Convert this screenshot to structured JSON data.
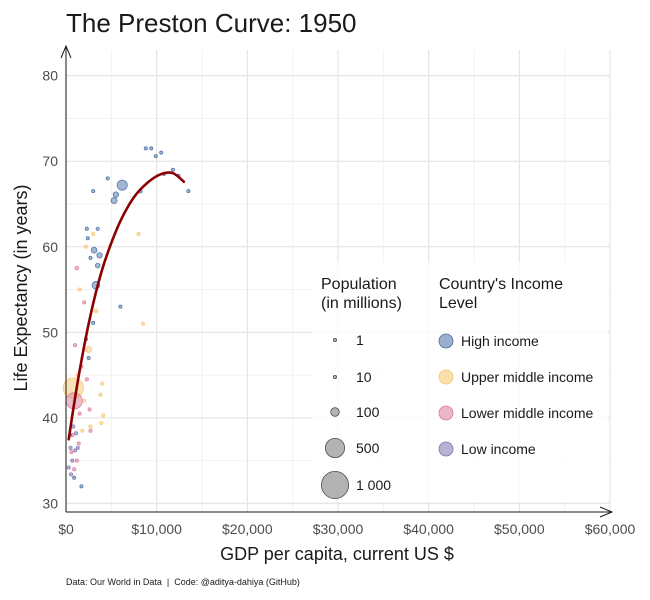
{
  "chart_data": {
    "type": "scatter",
    "title": "The Preston Curve: 1950",
    "xlabel": "GDP per capita, current US $",
    "ylabel": "Life Expectancy (in years)",
    "caption": "Data: Our World in Data  |  Code: @aditya-dahiya (GitHub)",
    "xlim": [
      0,
      60000
    ],
    "ylim": [
      29,
      83
    ],
    "x_ticks": [
      {
        "value": 0,
        "label": "$0"
      },
      {
        "value": 10000,
        "label": "$10,000"
      },
      {
        "value": 20000,
        "label": "$20,000"
      },
      {
        "value": 30000,
        "label": "$30,000"
      },
      {
        "value": 40000,
        "label": "$40,000"
      },
      {
        "value": 50000,
        "label": "$50,000"
      },
      {
        "value": 60000,
        "label": "$60,000"
      }
    ],
    "y_ticks": [
      {
        "value": 30,
        "label": "30"
      },
      {
        "value": 40,
        "label": "40"
      },
      {
        "value": 50,
        "label": "50"
      },
      {
        "value": 60,
        "label": "60"
      },
      {
        "value": 70,
        "label": "70"
      },
      {
        "value": 80,
        "label": "80"
      }
    ],
    "grid": true,
    "size_legend": {
      "title": [
        "Population",
        "(in millions)"
      ],
      "entries": [
        {
          "label": "1",
          "value": 1
        },
        {
          "label": "10",
          "value": 10
        },
        {
          "label": "100",
          "value": 100
        },
        {
          "label": "500",
          "value": 500
        },
        {
          "label": "1 000",
          "value": 1000
        }
      ]
    },
    "color_legend": {
      "title": [
        "Country's Income",
        "Level"
      ],
      "entries": [
        {
          "label": "High income",
          "color": "#4a6fa5"
        },
        {
          "label": "Upper middle income",
          "color": "#f7c66b"
        },
        {
          "label": "Lower middle income",
          "color": "#d97a9a"
        },
        {
          "label": "Low income",
          "color": "#7f73b3"
        }
      ]
    },
    "legend_placement": "bottom-right inside plot",
    "trend": {
      "color": "#8b0000",
      "points": [
        {
          "x": 300,
          "y": 37.5
        },
        {
          "x": 800,
          "y": 41
        },
        {
          "x": 1500,
          "y": 45.5
        },
        {
          "x": 2500,
          "y": 51
        },
        {
          "x": 3500,
          "y": 55.5
        },
        {
          "x": 4500,
          "y": 59
        },
        {
          "x": 6000,
          "y": 63
        },
        {
          "x": 7500,
          "y": 65.8
        },
        {
          "x": 9000,
          "y": 67.5
        },
        {
          "x": 10500,
          "y": 68.5
        },
        {
          "x": 11800,
          "y": 68.6
        },
        {
          "x": 13000,
          "y": 67.6
        }
      ]
    },
    "series": [
      {
        "name": "High income",
        "points": [
          {
            "x": 8800,
            "y": 71.5,
            "pop": 5
          },
          {
            "x": 9400,
            "y": 71.5,
            "pop": 7
          },
          {
            "x": 10500,
            "y": 71,
            "pop": 4
          },
          {
            "x": 9900,
            "y": 70.6,
            "pop": 3
          },
          {
            "x": 11800,
            "y": 69,
            "pop": 10
          },
          {
            "x": 12400,
            "y": 68.3,
            "pop": 12
          },
          {
            "x": 10800,
            "y": 68.5,
            "pop": 8
          },
          {
            "x": 13500,
            "y": 66.5,
            "pop": 2
          },
          {
            "x": 8200,
            "y": 66.5,
            "pop": 20
          },
          {
            "x": 6200,
            "y": 67.2,
            "pop": 140
          },
          {
            "x": 5500,
            "y": 66.1,
            "pop": 40
          },
          {
            "x": 5300,
            "y": 65.4,
            "pop": 50
          },
          {
            "x": 4600,
            "y": 68,
            "pop": 4
          },
          {
            "x": 3000,
            "y": 66.5,
            "pop": 3
          },
          {
            "x": 3500,
            "y": 62.1,
            "pop": 15
          },
          {
            "x": 2300,
            "y": 62.1,
            "pop": 6
          },
          {
            "x": 3100,
            "y": 59.6,
            "pop": 45
          },
          {
            "x": 3700,
            "y": 59,
            "pop": 40
          },
          {
            "x": 3500,
            "y": 57.8,
            "pop": 30
          },
          {
            "x": 3300,
            "y": 55.5,
            "pop": 80
          },
          {
            "x": 2400,
            "y": 61,
            "pop": 5
          },
          {
            "x": 2700,
            "y": 58.7,
            "pop": 8
          },
          {
            "x": 6000,
            "y": 53,
            "pop": 3
          },
          {
            "x": 2200,
            "y": 49.2,
            "pop": 2
          },
          {
            "x": 3000,
            "y": 51.1,
            "pop": 2
          },
          {
            "x": 2500,
            "y": 47,
            "pop": 2
          },
          {
            "x": 900,
            "y": 33,
            "pop": 2
          },
          {
            "x": 1700,
            "y": 32,
            "pop": 2
          }
        ]
      },
      {
        "name": "Upper middle income",
        "points": [
          {
            "x": 800,
            "y": 43.5,
            "pop": 560
          },
          {
            "x": 2500,
            "y": 48,
            "pop": 50
          },
          {
            "x": 3300,
            "y": 52.5,
            "pop": 20
          },
          {
            "x": 3000,
            "y": 61.5,
            "pop": 10
          },
          {
            "x": 4000,
            "y": 44,
            "pop": 8
          },
          {
            "x": 8500,
            "y": 51,
            "pop": 3
          },
          {
            "x": 8000,
            "y": 61.5,
            "pop": 2
          },
          {
            "x": 2200,
            "y": 60,
            "pop": 5
          },
          {
            "x": 1500,
            "y": 55,
            "pop": 6
          },
          {
            "x": 1800,
            "y": 38.5,
            "pop": 5
          },
          {
            "x": 3900,
            "y": 39.4,
            "pop": 4
          },
          {
            "x": 2700,
            "y": 39,
            "pop": 5
          },
          {
            "x": 4100,
            "y": 40.3,
            "pop": 3
          },
          {
            "x": 1300,
            "y": 45,
            "pop": 3
          },
          {
            "x": 2000,
            "y": 42,
            "pop": 2
          },
          {
            "x": 3800,
            "y": 42.7,
            "pop": 2
          }
        ]
      },
      {
        "name": "Lower middle income",
        "points": [
          {
            "x": 900,
            "y": 42,
            "pop": 360
          },
          {
            "x": 1200,
            "y": 57.5,
            "pop": 20
          },
          {
            "x": 2000,
            "y": 53.5,
            "pop": 3
          },
          {
            "x": 1000,
            "y": 48.5,
            "pop": 10
          },
          {
            "x": 700,
            "y": 38,
            "pop": 15
          },
          {
            "x": 1400,
            "y": 37,
            "pop": 8
          },
          {
            "x": 600,
            "y": 36,
            "pop": 5
          },
          {
            "x": 1200,
            "y": 35,
            "pop": 4
          },
          {
            "x": 900,
            "y": 34,
            "pop": 3
          },
          {
            "x": 2600,
            "y": 41,
            "pop": 5
          },
          {
            "x": 2700,
            "y": 38.5,
            "pop": 2
          },
          {
            "x": 1500,
            "y": 40.5,
            "pop": 2
          },
          {
            "x": 1700,
            "y": 46,
            "pop": 2
          },
          {
            "x": 2300,
            "y": 44.5,
            "pop": 2
          }
        ]
      },
      {
        "name": "Low income",
        "points": [
          {
            "x": 500,
            "y": 36.5,
            "pop": 8
          },
          {
            "x": 700,
            "y": 35,
            "pop": 5
          },
          {
            "x": 450,
            "y": 38,
            "pop": 6
          },
          {
            "x": 1000,
            "y": 36.2,
            "pop": 3
          },
          {
            "x": 550,
            "y": 33.4,
            "pop": 4
          },
          {
            "x": 1300,
            "y": 36.5,
            "pop": 3
          },
          {
            "x": 800,
            "y": 39,
            "pop": 2
          },
          {
            "x": 300,
            "y": 34.2,
            "pop": 2
          },
          {
            "x": 1100,
            "y": 38.2,
            "pop": 2
          }
        ]
      }
    ]
  }
}
